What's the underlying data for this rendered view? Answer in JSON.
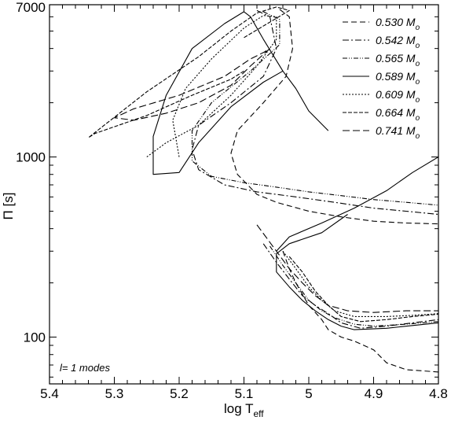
{
  "chart_data": {
    "type": "line",
    "title": "",
    "xlabel": {
      "main": "log T",
      "sub": "eff"
    },
    "ylabel": "Π [s]",
    "xlim": [
      5.4,
      4.8
    ],
    "ylim": [
      55,
      7000
    ],
    "x_reversed": true,
    "y_scale": "log",
    "x_ticks": [
      {
        "value": 5.4,
        "label": "5.4"
      },
      {
        "value": 5.3,
        "label": "5.3"
      },
      {
        "value": 5.2,
        "label": "5.2"
      },
      {
        "value": 5.1,
        "label": "5.1"
      },
      {
        "value": 5.0,
        "label": "5"
      },
      {
        "value": 4.9,
        "label": "4.9"
      },
      {
        "value": 4.8,
        "label": "4.8"
      }
    ],
    "y_ticks": [
      {
        "value": 100,
        "label": "100"
      },
      {
        "value": 1000,
        "label": "1000"
      },
      {
        "value": 7000,
        "label": "7000"
      }
    ],
    "annotation": "l= 1 modes",
    "legend_position": "top-right",
    "mass_unit": {
      "main": "M",
      "sub": "o"
    },
    "series": [
      {
        "name": "0.530",
        "dash": "7,4",
        "points": [
          [
            5.045,
            6600
          ],
          [
            5.03,
            6000
          ],
          [
            5.025,
            4000
          ],
          [
            5.035,
            2800
          ],
          [
            5.07,
            2000
          ],
          [
            5.11,
            1400
          ],
          [
            5.12,
            1050
          ],
          [
            5.11,
            800
          ],
          [
            5.08,
            620
          ],
          [
            5.05,
            560
          ],
          [
            5.0,
            500
          ],
          [
            4.95,
            465
          ],
          [
            4.9,
            440
          ],
          [
            4.85,
            430
          ],
          [
            4.8,
            425
          ]
        ],
        "lower": [
          [
            5.04,
            300
          ],
          [
            5.03,
            240
          ],
          [
            5.02,
            200
          ],
          [
            5.0,
            150
          ],
          [
            4.98,
            125
          ],
          [
            4.97,
            110
          ],
          [
            4.95,
            100
          ],
          [
            4.93,
            95
          ],
          [
            4.9,
            85
          ],
          [
            4.88,
            72
          ],
          [
            4.85,
            66
          ],
          [
            4.8,
            64
          ]
        ]
      },
      {
        "name": "0.542",
        "dash": "8,3,2,3",
        "points": [
          [
            5.08,
            6500
          ],
          [
            5.06,
            6000
          ],
          [
            5.05,
            4000
          ],
          [
            5.07,
            2800
          ],
          [
            5.12,
            2000
          ],
          [
            5.17,
            1500
          ],
          [
            5.18,
            1100
          ],
          [
            5.17,
            850
          ],
          [
            5.13,
            700
          ],
          [
            5.08,
            640
          ],
          [
            5.02,
            600
          ],
          [
            4.96,
            560
          ],
          [
            4.9,
            520
          ],
          [
            4.85,
            500
          ],
          [
            4.8,
            480
          ]
        ],
        "lower": [
          [
            5.07,
            330
          ],
          [
            5.05,
            260
          ],
          [
            5.03,
            210
          ],
          [
            5.01,
            170
          ],
          [
            4.99,
            150
          ],
          [
            4.97,
            135
          ],
          [
            4.95,
            120
          ],
          [
            4.92,
            112
          ],
          [
            4.88,
            115
          ],
          [
            4.84,
            120
          ],
          [
            4.8,
            125
          ]
        ]
      },
      {
        "name": "0.565",
        "dash": "6,2,1,2,1,2",
        "points": [
          [
            5.07,
            6400
          ],
          [
            5.045,
            5800
          ],
          [
            5.045,
            4200
          ],
          [
            5.09,
            3000
          ],
          [
            5.15,
            2000
          ],
          [
            5.18,
            1400
          ],
          [
            5.18,
            950
          ],
          [
            5.15,
            780
          ],
          [
            5.1,
            720
          ],
          [
            5.05,
            680
          ],
          [
            5.0,
            640
          ],
          [
            4.95,
            610
          ],
          [
            4.9,
            580
          ],
          [
            4.85,
            560
          ],
          [
            4.8,
            540
          ]
        ],
        "lower": [
          [
            5.06,
            320
          ],
          [
            5.04,
            250
          ],
          [
            5.02,
            200
          ],
          [
            5.0,
            160
          ],
          [
            4.98,
            140
          ],
          [
            4.96,
            128
          ],
          [
            4.93,
            118
          ],
          [
            4.9,
            115
          ],
          [
            4.85,
            118
          ],
          [
            4.8,
            122
          ]
        ]
      },
      {
        "name": "0.589",
        "dash": "",
        "points": [
          [
            5.04,
            3000
          ],
          [
            5.07,
            4500
          ],
          [
            5.09,
            6000
          ],
          [
            5.1,
            6400
          ],
          [
            5.13,
            5500
          ],
          [
            5.18,
            4000
          ],
          [
            5.22,
            2200
          ],
          [
            5.24,
            1300
          ],
          [
            5.24,
            800
          ],
          [
            5.2,
            820
          ],
          [
            5.17,
            1200
          ],
          [
            5.12,
            1900
          ],
          [
            5.07,
            2600
          ],
          [
            5.04,
            3000
          ],
          [
            5.02,
            2400
          ],
          [
            5.0,
            1800
          ],
          [
            4.97,
            1400
          ]
        ],
        "lower": [
          [
            4.94,
            480
          ],
          [
            4.98,
            380
          ],
          [
            5.03,
            330
          ],
          [
            5.05,
            290
          ],
          [
            5.05,
            230
          ],
          [
            5.03,
            190
          ],
          [
            5.01,
            160
          ],
          [
            4.99,
            140
          ],
          [
            4.97,
            125
          ],
          [
            4.95,
            115
          ],
          [
            4.93,
            110
          ],
          [
            4.88,
            112
          ],
          [
            4.84,
            116
          ],
          [
            4.8,
            120
          ]
        ],
        "upper_branch": [
          [
            5.05,
            300
          ],
          [
            5.03,
            360
          ],
          [
            4.98,
            430
          ],
          [
            4.93,
            520
          ],
          [
            4.88,
            650
          ],
          [
            4.84,
            820
          ],
          [
            4.8,
            1000
          ]
        ]
      },
      {
        "name": "0.609",
        "dash": "2,2",
        "points": [
          [
            5.2,
            1000
          ],
          [
            5.21,
            1600
          ],
          [
            5.19,
            2400
          ],
          [
            5.15,
            3500
          ],
          [
            5.1,
            5200
          ],
          [
            5.07,
            6100
          ],
          [
            5.05,
            6000
          ],
          [
            5.05,
            4500
          ],
          [
            5.08,
            3200
          ],
          [
            5.12,
            2200
          ],
          [
            5.17,
            1500
          ],
          [
            5.22,
            1200
          ],
          [
            5.25,
            1000
          ]
        ],
        "lower": [
          [
            5.04,
            300
          ],
          [
            5.02,
            240
          ],
          [
            5.0,
            190
          ],
          [
            4.98,
            160
          ],
          [
            4.96,
            140
          ],
          [
            4.93,
            130
          ],
          [
            4.88,
            130
          ],
          [
            4.84,
            132
          ],
          [
            4.8,
            135
          ]
        ]
      },
      {
        "name": "0.664",
        "dash": "5,2",
        "points": [
          [
            5.1,
            4600
          ],
          [
            5.03,
            6500
          ],
          [
            5.05,
            6800
          ],
          [
            5.08,
            6300
          ],
          [
            5.12,
            5000
          ],
          [
            5.17,
            3600
          ],
          [
            5.25,
            2300
          ],
          [
            5.34,
            1280
          ],
          [
            5.33,
            1350
          ],
          [
            5.25,
            1700
          ],
          [
            5.18,
            2200
          ],
          [
            5.12,
            2700
          ],
          [
            5.1,
            3000
          ]
        ],
        "lower": [
          [
            5.03,
            280
          ],
          [
            5.01,
            230
          ],
          [
            4.99,
            180
          ],
          [
            4.97,
            150
          ],
          [
            4.95,
            130
          ],
          [
            4.92,
            122
          ],
          [
            4.88,
            125
          ],
          [
            4.84,
            130
          ],
          [
            4.8,
            134
          ]
        ]
      },
      {
        "name": "0.741",
        "dash": "9,4",
        "points": [
          [
            5.06,
            4000
          ],
          [
            5.09,
            3200
          ],
          [
            5.12,
            2500
          ],
          [
            5.17,
            2000
          ],
          [
            5.22,
            1750
          ],
          [
            5.27,
            1600
          ],
          [
            5.3,
            1650
          ],
          [
            5.27,
            1850
          ],
          [
            5.2,
            2200
          ],
          [
            5.13,
            2800
          ],
          [
            5.09,
            3500
          ],
          [
            5.07,
            3800
          ],
          [
            5.06,
            4000
          ]
        ],
        "lower": [
          [
            5.08,
            420
          ],
          [
            5.05,
            300
          ],
          [
            5.03,
            240
          ],
          [
            5.01,
            200
          ],
          [
            4.99,
            170
          ],
          [
            4.97,
            150
          ],
          [
            4.94,
            140
          ],
          [
            4.9,
            137
          ],
          [
            4.85,
            140
          ],
          [
            4.8,
            140
          ]
        ]
      }
    ]
  }
}
